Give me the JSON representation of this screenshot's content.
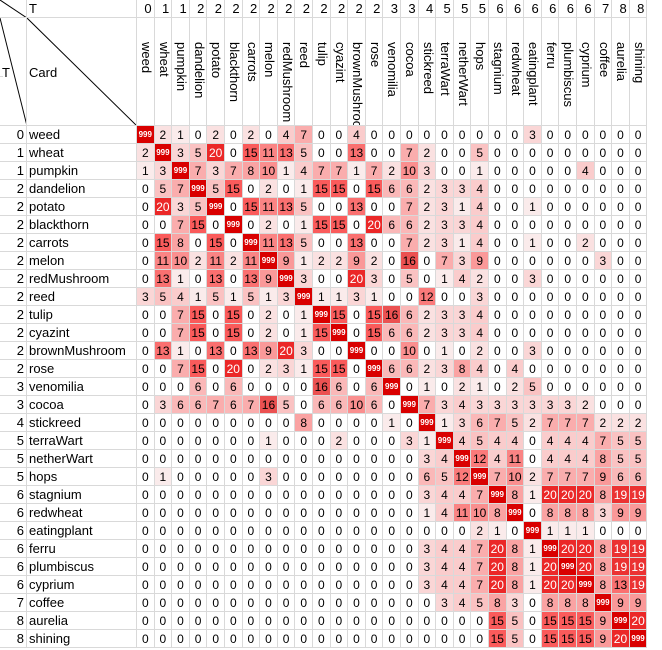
{
  "corner_top_left": "\\",
  "header_t_label": "T",
  "header_card_label": "Card",
  "header_row_t_label": "T",
  "cards": [
    {
      "name": "weed",
      "t": "0"
    },
    {
      "name": "wheat",
      "t": "1"
    },
    {
      "name": "pumpkin",
      "t": "1"
    },
    {
      "name": "dandelion",
      "t": "2"
    },
    {
      "name": "potato",
      "t": "2"
    },
    {
      "name": "blackthorn",
      "t": "2"
    },
    {
      "name": "carrots",
      "t": "2"
    },
    {
      "name": "melon",
      "t": "2"
    },
    {
      "name": "redMushroom",
      "t": "2"
    },
    {
      "name": "reed",
      "t": "2"
    },
    {
      "name": "tulip",
      "t": "2"
    },
    {
      "name": "cyazint",
      "t": "2"
    },
    {
      "name": "brownMushroom",
      "t": "2"
    },
    {
      "name": "rose",
      "t": "2"
    },
    {
      "name": "venomilia",
      "t": "3"
    },
    {
      "name": "cocoa",
      "t": "3"
    },
    {
      "name": "stickreed",
      "t": "4"
    },
    {
      "name": "terraWart",
      "t": "5"
    },
    {
      "name": "netherWart",
      "t": "5"
    },
    {
      "name": "hops",
      "t": "5"
    },
    {
      "name": "stagnium",
      "t": "6"
    },
    {
      "name": "redwheat",
      "t": "6"
    },
    {
      "name": "eatingplant",
      "t": "6"
    },
    {
      "name": "ferru",
      "t": "6"
    },
    {
      "name": "plumbiscus",
      "t": "6"
    },
    {
      "name": "cyprium",
      "t": "6"
    },
    {
      "name": "coffee",
      "t": "7"
    },
    {
      "name": "aurelia",
      "t": "8"
    },
    {
      "name": "shining",
      "t": "8"
    }
  ],
  "big_label": "999",
  "matrix": [
    [
      "999",
      "2",
      "1",
      "0",
      "2",
      "0",
      "2",
      "0",
      "4",
      "7",
      "0",
      "0",
      "4",
      "0",
      "0",
      "0",
      "0",
      "0",
      "0",
      "0",
      "0",
      "0",
      "3",
      "0",
      "0",
      "0",
      "0",
      "0",
      "0"
    ],
    [
      "2",
      "999",
      "3",
      "5",
      "20",
      "0",
      "15",
      "11",
      "13",
      "5",
      "0",
      "0",
      "13",
      "0",
      "0",
      "7",
      "2",
      "0",
      "0",
      "5",
      "0",
      "0",
      "0",
      "0",
      "0",
      "0",
      "0",
      "0",
      "0"
    ],
    [
      "1",
      "3",
      "999",
      "7",
      "3",
      "7",
      "8",
      "10",
      "1",
      "4",
      "7",
      "7",
      "1",
      "7",
      "2",
      "10",
      "3",
      "0",
      "0",
      "1",
      "0",
      "0",
      "0",
      "0",
      "0",
      "4",
      "0",
      "0",
      "0"
    ],
    [
      "0",
      "5",
      "7",
      "999",
      "5",
      "15",
      "0",
      "2",
      "0",
      "1",
      "15",
      "15",
      "0",
      "15",
      "6",
      "6",
      "2",
      "3",
      "3",
      "4",
      "0",
      "0",
      "0",
      "0",
      "0",
      "0",
      "0",
      "0",
      "0"
    ],
    [
      "0",
      "20",
      "3",
      "5",
      "999",
      "0",
      "15",
      "11",
      "13",
      "5",
      "0",
      "0",
      "13",
      "0",
      "0",
      "7",
      "2",
      "3",
      "1",
      "4",
      "0",
      "0",
      "1",
      "0",
      "0",
      "0",
      "0",
      "0",
      "0"
    ],
    [
      "0",
      "0",
      "7",
      "15",
      "0",
      "999",
      "0",
      "2",
      "0",
      "1",
      "15",
      "15",
      "0",
      "20",
      "6",
      "6",
      "2",
      "3",
      "3",
      "4",
      "0",
      "0",
      "0",
      "0",
      "0",
      "0",
      "0",
      "0",
      "0"
    ],
    [
      "0",
      "15",
      "8",
      "0",
      "15",
      "0",
      "999",
      "11",
      "13",
      "5",
      "0",
      "0",
      "13",
      "0",
      "0",
      "7",
      "2",
      "3",
      "1",
      "4",
      "0",
      "0",
      "1",
      "0",
      "0",
      "2",
      "0",
      "0",
      "0"
    ],
    [
      "0",
      "11",
      "10",
      "2",
      "11",
      "2",
      "11",
      "999",
      "9",
      "1",
      "2",
      "2",
      "9",
      "2",
      "0",
      "16",
      "0",
      "7",
      "3",
      "9",
      "0",
      "0",
      "0",
      "0",
      "0",
      "0",
      "3",
      "0",
      "0"
    ],
    [
      "0",
      "13",
      "1",
      "0",
      "13",
      "0",
      "13",
      "9",
      "999",
      "3",
      "0",
      "0",
      "20",
      "3",
      "0",
      "5",
      "0",
      "1",
      "4",
      "2",
      "0",
      "0",
      "3",
      "0",
      "0",
      "0",
      "0",
      "0",
      "0"
    ],
    [
      "3",
      "5",
      "4",
      "1",
      "5",
      "1",
      "5",
      "1",
      "3",
      "999",
      "1",
      "1",
      "3",
      "1",
      "0",
      "0",
      "12",
      "0",
      "0",
      "3",
      "0",
      "0",
      "0",
      "0",
      "0",
      "0",
      "0",
      "0",
      "0"
    ],
    [
      "0",
      "0",
      "7",
      "15",
      "0",
      "15",
      "0",
      "2",
      "0",
      "1",
      "999",
      "15",
      "0",
      "15",
      "16",
      "6",
      "2",
      "3",
      "3",
      "4",
      "0",
      "0",
      "0",
      "0",
      "0",
      "0",
      "0",
      "0",
      "0"
    ],
    [
      "0",
      "0",
      "7",
      "15",
      "0",
      "15",
      "0",
      "2",
      "0",
      "1",
      "15",
      "999",
      "0",
      "15",
      "6",
      "6",
      "2",
      "3",
      "3",
      "4",
      "0",
      "0",
      "0",
      "0",
      "0",
      "0",
      "0",
      "0",
      "0"
    ],
    [
      "0",
      "13",
      "1",
      "0",
      "13",
      "0",
      "13",
      "9",
      "20",
      "3",
      "0",
      "0",
      "999",
      "0",
      "0",
      "10",
      "0",
      "1",
      "0",
      "2",
      "0",
      "0",
      "3",
      "0",
      "0",
      "0",
      "0",
      "0",
      "0"
    ],
    [
      "0",
      "0",
      "7",
      "15",
      "0",
      "20",
      "0",
      "2",
      "3",
      "1",
      "15",
      "15",
      "0",
      "999",
      "6",
      "6",
      "2",
      "3",
      "8",
      "4",
      "0",
      "4",
      "0",
      "0",
      "0",
      "0",
      "0",
      "0",
      "0"
    ],
    [
      "0",
      "0",
      "0",
      "6",
      "0",
      "6",
      "0",
      "0",
      "0",
      "0",
      "16",
      "6",
      "0",
      "6",
      "999",
      "0",
      "1",
      "0",
      "2",
      "1",
      "0",
      "2",
      "5",
      "0",
      "0",
      "0",
      "0",
      "0",
      "0"
    ],
    [
      "0",
      "3",
      "6",
      "6",
      "7",
      "6",
      "7",
      "16",
      "5",
      "0",
      "6",
      "6",
      "10",
      "6",
      "0",
      "999",
      "7",
      "3",
      "4",
      "3",
      "3",
      "3",
      "3",
      "3",
      "3",
      "2",
      "0",
      "0",
      "0"
    ],
    [
      "0",
      "0",
      "0",
      "0",
      "0",
      "0",
      "0",
      "0",
      "0",
      "8",
      "0",
      "0",
      "0",
      "0",
      "1",
      "0",
      "999",
      "1",
      "3",
      "6",
      "7",
      "5",
      "2",
      "7",
      "7",
      "7",
      "2",
      "2",
      "2"
    ],
    [
      "0",
      "0",
      "0",
      "0",
      "0",
      "0",
      "0",
      "1",
      "0",
      "0",
      "0",
      "2",
      "0",
      "0",
      "0",
      "3",
      "1",
      "999",
      "4",
      "5",
      "4",
      "4",
      "0",
      "4",
      "4",
      "4",
      "7",
      "5",
      "5"
    ],
    [
      "0",
      "0",
      "0",
      "0",
      "0",
      "0",
      "0",
      "0",
      "0",
      "0",
      "0",
      "0",
      "0",
      "0",
      "0",
      "0",
      "3",
      "4",
      "999",
      "12",
      "4",
      "11",
      "0",
      "4",
      "4",
      "4",
      "8",
      "5",
      "5"
    ],
    [
      "0",
      "1",
      "0",
      "0",
      "0",
      "0",
      "0",
      "3",
      "0",
      "0",
      "0",
      "0",
      "0",
      "0",
      "0",
      "0",
      "6",
      "5",
      "12",
      "999",
      "7",
      "10",
      "2",
      "7",
      "7",
      "7",
      "9",
      "6",
      "6"
    ],
    [
      "0",
      "0",
      "0",
      "0",
      "0",
      "0",
      "0",
      "0",
      "0",
      "0",
      "0",
      "0",
      "0",
      "0",
      "0",
      "0",
      "3",
      "4",
      "4",
      "7",
      "999",
      "8",
      "1",
      "20",
      "20",
      "20",
      "8",
      "19",
      "19"
    ],
    [
      "0",
      "0",
      "0",
      "0",
      "0",
      "0",
      "0",
      "0",
      "0",
      "0",
      "0",
      "0",
      "0",
      "0",
      "0",
      "0",
      "1",
      "4",
      "11",
      "10",
      "8",
      "999",
      "0",
      "8",
      "8",
      "8",
      "3",
      "9",
      "9"
    ],
    [
      "0",
      "0",
      "0",
      "0",
      "0",
      "0",
      "0",
      "0",
      "0",
      "0",
      "0",
      "0",
      "0",
      "0",
      "0",
      "0",
      "0",
      "0",
      "0",
      "2",
      "1",
      "0",
      "999",
      "1",
      "1",
      "1",
      "0",
      "0",
      "0"
    ],
    [
      "0",
      "0",
      "0",
      "0",
      "0",
      "0",
      "0",
      "0",
      "0",
      "0",
      "0",
      "0",
      "0",
      "0",
      "0",
      "0",
      "3",
      "4",
      "4",
      "7",
      "20",
      "8",
      "1",
      "999",
      "20",
      "20",
      "8",
      "19",
      "19"
    ],
    [
      "0",
      "0",
      "0",
      "0",
      "0",
      "0",
      "0",
      "0",
      "0",
      "0",
      "0",
      "0",
      "0",
      "0",
      "0",
      "0",
      "3",
      "4",
      "4",
      "7",
      "20",
      "8",
      "1",
      "20",
      "999",
      "20",
      "8",
      "19",
      "19"
    ],
    [
      "0",
      "0",
      "0",
      "0",
      "0",
      "0",
      "0",
      "0",
      "0",
      "0",
      "0",
      "0",
      "0",
      "0",
      "0",
      "0",
      "3",
      "4",
      "4",
      "7",
      "20",
      "8",
      "1",
      "20",
      "20",
      "999",
      "8",
      "13",
      "19"
    ],
    [
      "0",
      "0",
      "0",
      "0",
      "0",
      "0",
      "0",
      "0",
      "0",
      "0",
      "0",
      "0",
      "0",
      "0",
      "0",
      "0",
      "0",
      "3",
      "4",
      "5",
      "8",
      "3",
      "0",
      "8",
      "8",
      "8",
      "999",
      "9",
      "9"
    ],
    [
      "0",
      "0",
      "0",
      "0",
      "0",
      "0",
      "0",
      "0",
      "0",
      "0",
      "0",
      "0",
      "0",
      "0",
      "0",
      "0",
      "0",
      "0",
      "0",
      "0",
      "15",
      "5",
      "0",
      "15",
      "15",
      "15",
      "9",
      "999",
      "20"
    ],
    [
      "0",
      "0",
      "0",
      "0",
      "0",
      "0",
      "0",
      "0",
      "0",
      "0",
      "0",
      "0",
      "0",
      "0",
      "0",
      "0",
      "0",
      "0",
      "0",
      "0",
      "15",
      "5",
      "0",
      "15",
      "15",
      "15",
      "9",
      "20",
      "999"
    ]
  ]
}
